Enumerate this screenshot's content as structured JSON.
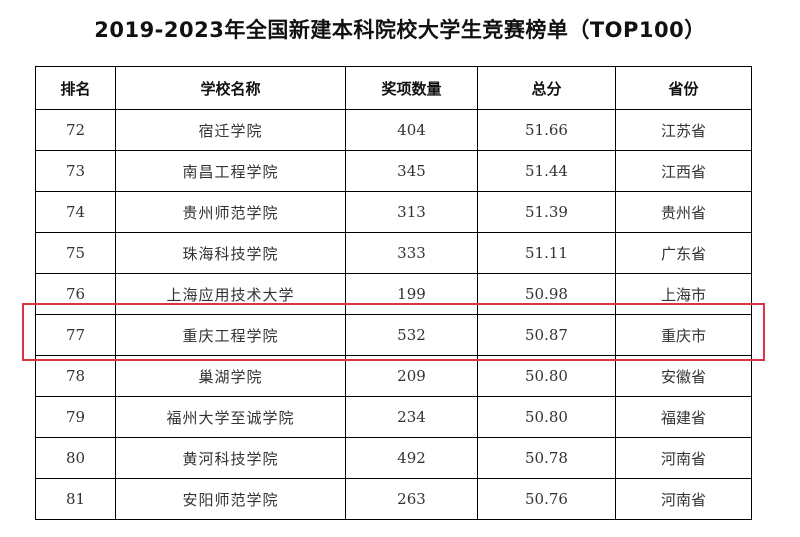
{
  "title": "2019-2023年全国新建本科院校大学生竞赛榜单（TOP100）",
  "table": {
    "headers": [
      "排名",
      "学校名称",
      "奖项数量",
      "总分",
      "省份"
    ],
    "rows": [
      [
        "72",
        "宿迁学院",
        "404",
        "51.66",
        "江苏省"
      ],
      [
        "73",
        "南昌工程学院",
        "345",
        "51.44",
        "江西省"
      ],
      [
        "74",
        "贵州师范学院",
        "313",
        "51.39",
        "贵州省"
      ],
      [
        "75",
        "珠海科技学院",
        "333",
        "51.11",
        "广东省"
      ],
      [
        "76",
        "上海应用技术大学",
        "199",
        "50.98",
        "上海市"
      ],
      [
        "77",
        "重庆工程学院",
        "532",
        "50.87",
        "重庆市"
      ],
      [
        "78",
        "巢湖学院",
        "209",
        "50.80",
        "安徽省"
      ],
      [
        "79",
        "福州大学至诚学院",
        "234",
        "50.80",
        "福建省"
      ],
      [
        "80",
        "黄河科技学院",
        "492",
        "50.78",
        "河南省"
      ],
      [
        "81",
        "安阳师范学院",
        "263",
        "50.76",
        "河南省"
      ]
    ],
    "highlighted_rank": "77"
  },
  "colors": {
    "highlight_border": "#d9343f",
    "grid": "#000000"
  }
}
